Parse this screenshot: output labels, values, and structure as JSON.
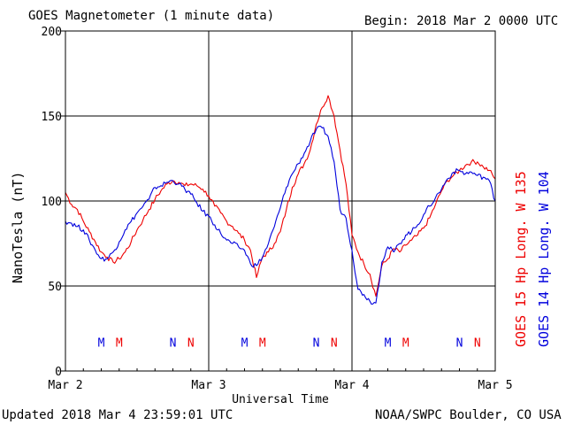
{
  "header": {
    "title": "GOES Magnetometer (1 minute data)",
    "begin": "Begin:  2018 Mar 2 0000 UTC"
  },
  "footer": {
    "updated": "Updated 2018 Mar  4 23:59:01 UTC",
    "credit": "NOAA/SWPC Boulder, CO USA"
  },
  "colors": {
    "goes15": "#ee0000",
    "goes14": "#0000dd",
    "axis": "#000000"
  },
  "chart_data": {
    "type": "line",
    "title": "GOES Magnetometer (1 minute data)",
    "xlabel": "Universal Time",
    "ylabel": "NanoTesla (nT)",
    "xlim": [
      0,
      72
    ],
    "ylim": [
      0,
      200
    ],
    "x_unit": "hours since 2018 Mar 2 0000 UTC",
    "yticks": [
      0,
      50,
      100,
      150,
      200
    ],
    "xticks": [
      {
        "x": 0,
        "label": "Mar 2"
      },
      {
        "x": 24,
        "label": "Mar 3"
      },
      {
        "x": 48,
        "label": "Mar 4"
      },
      {
        "x": 72,
        "label": "Mar 5"
      }
    ],
    "grid": true,
    "series": [
      {
        "name": "GOES 15 Hp  Long. W 135",
        "color": "#ee0000",
        "x": [
          0,
          1,
          2,
          3,
          4,
          5,
          6,
          7,
          8,
          9,
          10,
          11,
          12,
          13,
          14,
          15,
          16,
          17,
          18,
          19,
          20,
          21,
          22,
          23,
          24,
          25,
          26,
          27,
          28,
          29,
          30,
          31,
          32,
          33,
          34,
          35,
          36,
          37,
          38,
          39,
          40,
          41,
          42,
          43,
          44,
          45,
          46,
          47,
          48,
          49,
          50,
          51,
          52,
          53,
          54,
          55,
          56,
          57,
          58,
          59,
          60,
          61,
          62,
          63,
          64,
          65,
          66,
          67,
          68,
          69,
          70,
          71,
          72
        ],
        "y": [
          105,
          98,
          95,
          88,
          82,
          76,
          70,
          67,
          64,
          66,
          70,
          76,
          83,
          89,
          95,
          101,
          106,
          110,
          112,
          111,
          109,
          110,
          109,
          107,
          103,
          97,
          93,
          88,
          85,
          81,
          77,
          71,
          55,
          67,
          70,
          75,
          82,
          95,
          108,
          116,
          122,
          130,
          145,
          155,
          162,
          150,
          130,
          110,
          80,
          70,
          63,
          57,
          44,
          62,
          66,
          72,
          70,
          74,
          77,
          80,
          84,
          90,
          98,
          106,
          112,
          115,
          118,
          121,
          123,
          123,
          120,
          118,
          113
        ]
      },
      {
        "name": "GOES 14 Hp  Long. W 104",
        "color": "#0000dd",
        "x": [
          0,
          1,
          2,
          3,
          4,
          5,
          6,
          7,
          8,
          9,
          10,
          11,
          12,
          13,
          14,
          15,
          16,
          17,
          18,
          19,
          20,
          21,
          22,
          23,
          24,
          25,
          26,
          27,
          28,
          29,
          30,
          31,
          32,
          33,
          34,
          35,
          36,
          37,
          38,
          39,
          40,
          41,
          42,
          43,
          44,
          45,
          46,
          47,
          48,
          49,
          50,
          51,
          52,
          53,
          54,
          55,
          56,
          57,
          58,
          59,
          60,
          61,
          62,
          63,
          64,
          65,
          66,
          67,
          68,
          69,
          70,
          71,
          72
        ],
        "y": [
          88,
          87,
          85,
          83,
          77,
          71,
          66,
          66,
          70,
          76,
          83,
          88,
          93,
          97,
          101,
          108,
          109,
          111,
          112,
          110,
          107,
          104,
          99,
          94,
          91,
          86,
          81,
          77,
          75,
          73,
          71,
          63,
          62,
          67,
          75,
          85,
          96,
          108,
          116,
          122,
          128,
          135,
          142,
          143,
          138,
          123,
          95,
          90,
          71,
          48,
          45,
          41,
          40,
          64,
          73,
          70,
          75,
          80,
          82,
          86,
          92,
          97,
          102,
          107,
          113,
          117,
          118,
          116,
          117,
          115,
          114,
          112,
          100
        ]
      }
    ],
    "markers": [
      {
        "label": "M",
        "x": 6.0,
        "color": "#0000dd"
      },
      {
        "label": "M",
        "x": 9.0,
        "color": "#ee0000"
      },
      {
        "label": "N",
        "x": 18.0,
        "color": "#0000dd"
      },
      {
        "label": "N",
        "x": 21.0,
        "color": "#ee0000"
      },
      {
        "label": "M",
        "x": 30.0,
        "color": "#0000dd"
      },
      {
        "label": "M",
        "x": 33.0,
        "color": "#ee0000"
      },
      {
        "label": "N",
        "x": 42.0,
        "color": "#0000dd"
      },
      {
        "label": "N",
        "x": 45.0,
        "color": "#ee0000"
      },
      {
        "label": "M",
        "x": 54.0,
        "color": "#0000dd"
      },
      {
        "label": "M",
        "x": 57.0,
        "color": "#ee0000"
      },
      {
        "label": "N",
        "x": 66.0,
        "color": "#0000dd"
      },
      {
        "label": "N",
        "x": 69.0,
        "color": "#ee0000"
      }
    ],
    "marker_level": 17
  }
}
